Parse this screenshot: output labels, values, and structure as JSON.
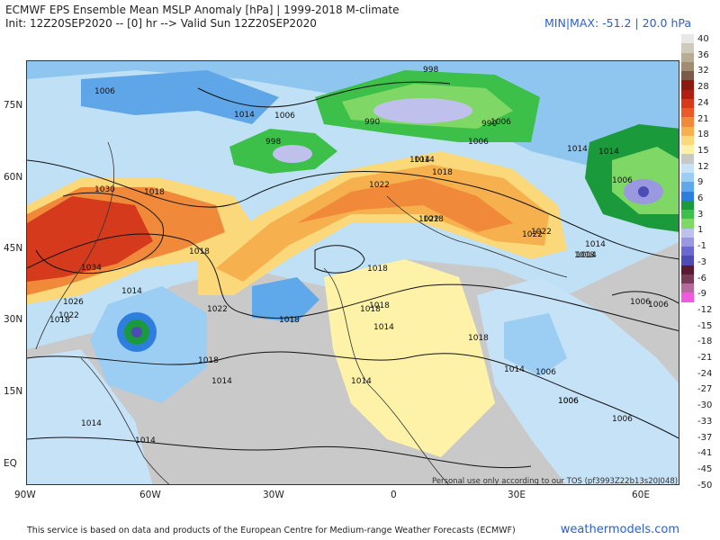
{
  "header": {
    "title": "ECMWF EPS Ensemble Mean MSLP Anomaly [hPa] | 1999-2018 M-climate",
    "subtitle": "Init: 12Z20SEP2020 -- [0] hr --> Valid Sun 12Z20SEP2020",
    "minmax": "MIN|MAX: -51.2 | 20.0 hPa"
  },
  "lat_labels": [
    "75N",
    "60N",
    "45N",
    "30N",
    "15N",
    "EQ"
  ],
  "lon_labels": [
    "90W",
    "60W",
    "30W",
    "0",
    "30E",
    "60E"
  ],
  "colorbar": {
    "labels": [
      "40",
      "36",
      "32",
      "28",
      "24",
      "21",
      "18",
      "15",
      "12",
      "9",
      "6",
      "3",
      "1",
      "-1",
      "-3",
      "-6",
      "-9",
      "-12",
      "-15",
      "-18",
      "-21",
      "-24",
      "-27",
      "-30",
      "-33",
      "-37",
      "-41",
      "-45",
      "-50"
    ],
    "colors": [
      "#e8e8e8",
      "#cfcabb",
      "#b8ad94",
      "#a08c70",
      "#7a5a48",
      "#8b1a10",
      "#b01e12",
      "#d63a1c",
      "#ea5a28",
      "#f08a3a",
      "#f6b04e",
      "#fbd97a",
      "#fdf2a8",
      "#c8c8c8",
      "#c6e2f6",
      "#9ccdf2",
      "#5fa8ea",
      "#2e7ee0",
      "#1a9a3a",
      "#3cc04a",
      "#7fd866",
      "#c0c0ec",
      "#9a98e0",
      "#6c68d2",
      "#4c4cb4",
      "#5a1a30",
      "#7a3a5a",
      "#b46a9c",
      "#f05ae0"
    ]
  },
  "map": {
    "contour_labels": [
      "998",
      "1006",
      "1014",
      "1006",
      "990",
      "998",
      "990",
      "1006",
      "1014",
      "1014",
      "1018",
      "1022",
      "1030",
      "1018",
      "1034",
      "1026",
      "1022",
      "1018",
      "1014",
      "1018",
      "1022",
      "1018",
      "1018",
      "1006",
      "1022",
      "1018",
      "1014",
      "1022",
      "1018",
      "1014",
      "1018",
      "1014",
      "1018",
      "1014",
      "1014",
      "1014",
      "1006",
      "1006",
      "1006",
      "1006",
      "1014",
      "1014",
      "1006",
      "1014",
      "1018",
      "1022",
      "1014",
      "1018",
      "1006",
      "1006"
    ]
  },
  "tos": "Personal use only according to our TOS (pf3993Z22b13s20J048)",
  "footer": {
    "text": "This service is based on data and products of the European Centre for Medium-range Weather Forecasts (ECMWF)",
    "brand": "weathermodels.com"
  }
}
